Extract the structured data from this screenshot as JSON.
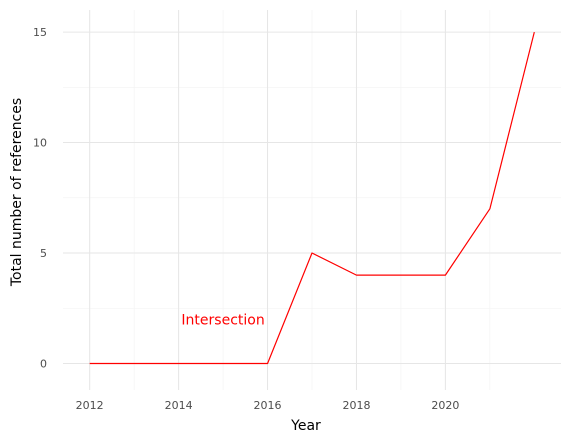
{
  "chart_data": {
    "type": "line",
    "xlabel": "Year",
    "ylabel": "Total number of references",
    "x_ticks": [
      2012,
      2014,
      2016,
      2018,
      2020
    ],
    "y_ticks": [
      0,
      5,
      10,
      15
    ],
    "xlim": [
      2011.4,
      2022.6
    ],
    "ylim": [
      -1.2,
      16.0
    ],
    "grid": true,
    "line_color": "#ff0000",
    "series": [
      {
        "x": [
          2012,
          2013,
          2014,
          2015,
          2016,
          2017,
          2018,
          2019,
          2020,
          2021,
          2022
        ],
        "y": [
          0,
          0,
          0,
          0,
          0,
          5,
          4,
          4,
          4,
          7,
          15
        ]
      }
    ],
    "annotations": [
      {
        "text": "Intersection",
        "x": 2015,
        "y": 2,
        "color": "#ff0000"
      }
    ]
  }
}
